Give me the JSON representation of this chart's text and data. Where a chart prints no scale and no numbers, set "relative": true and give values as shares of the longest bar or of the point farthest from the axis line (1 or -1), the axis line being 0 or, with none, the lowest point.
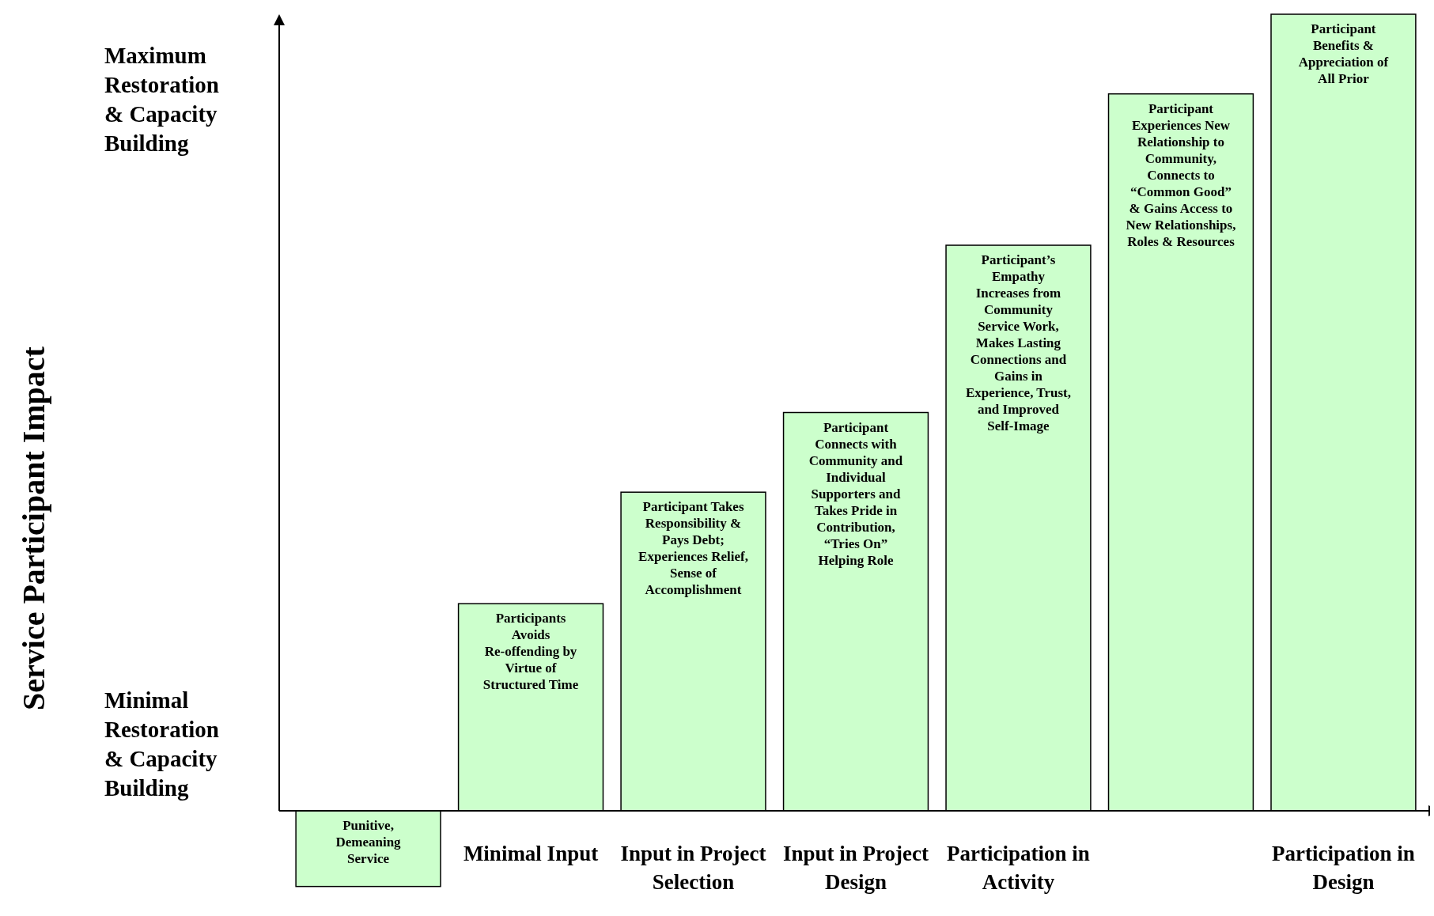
{
  "chart_data": {
    "type": "bar",
    "relative": true,
    "color": "#ccffcc",
    "categories": [
      null,
      "Minimal Input",
      "Input in Project Selection",
      "Input in Project Design",
      "Participation in Activity",
      null,
      "Participation in Design"
    ],
    "values": [
      -0.095,
      0.26,
      0.4,
      0.5,
      0.71,
      0.9,
      1
    ],
    "annotations": [
      "Punitive, Demeaning Service",
      "Participants Avoids Re-offending by Virtue of Structured Time",
      "Participant Takes Responsibility & Pays Debt; Experiences Relief, Sense of Accomplishment",
      "Participant Connects with Community and Individual Supporters and Takes Pride in Contribution, “Tries On” Helping Role",
      "Participant’s Empathy Increases from Community Service Work, Makes Lasting Connections and Gains in Experience, Trust, and Improved Self-Image",
      "Participant Experiences New Relationship to Community, Connects to “Common Good” & Gains Access to New Relationships, Roles & Resources",
      "Participant Benefits & Appreciation of All Prior",
      "Maximum Restoration & Capacity Building",
      "Minimal Restoration & Capacity Building",
      "Service Participant Impact"
    ]
  }
}
